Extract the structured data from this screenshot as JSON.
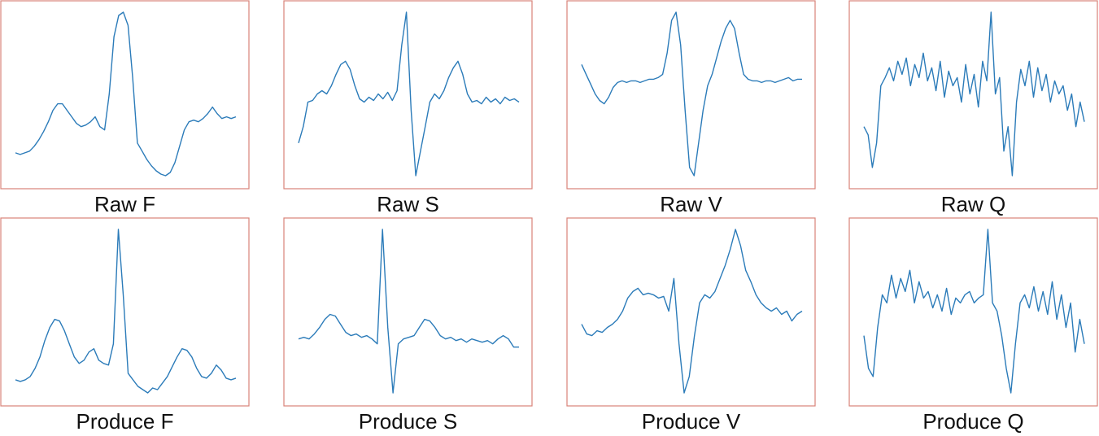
{
  "chart_data": [
    {
      "type": "line",
      "title": "Raw F",
      "color": "#2b7bb9",
      "values": [
        14,
        13,
        14,
        15,
        18,
        22,
        27,
        33,
        40,
        44,
        44,
        40,
        36,
        32,
        30,
        31,
        33,
        36,
        30,
        28,
        50,
        85,
        98,
        100,
        92,
        60,
        20,
        15,
        10,
        6,
        3,
        1,
        0,
        2,
        8,
        18,
        28,
        33,
        34,
        33,
        35,
        38,
        42,
        38,
        35,
        36,
        35,
        36
      ]
    },
    {
      "type": "line",
      "title": "Raw S",
      "color": "#2b7bb9",
      "values": [
        20,
        30,
        45,
        46,
        50,
        52,
        50,
        55,
        62,
        68,
        70,
        65,
        55,
        47,
        45,
        48,
        46,
        50,
        47,
        51,
        46,
        52,
        80,
        100,
        40,
        0,
        15,
        30,
        45,
        50,
        47,
        52,
        60,
        66,
        70,
        62,
        50,
        45,
        46,
        44,
        48,
        45,
        47,
        44,
        48,
        46,
        47,
        45
      ]
    },
    {
      "type": "line",
      "title": "Raw V",
      "color": "#2b7bb9",
      "values": [
        68,
        62,
        56,
        50,
        46,
        44,
        48,
        54,
        57,
        58,
        57,
        58,
        58,
        57,
        58,
        59,
        59,
        60,
        62,
        75,
        95,
        100,
        80,
        40,
        5,
        0,
        20,
        40,
        55,
        62,
        72,
        82,
        90,
        95,
        90,
        75,
        62,
        59,
        58,
        58,
        57,
        58,
        58,
        57,
        58,
        59,
        60,
        58,
        59,
        59
      ]
    },
    {
      "type": "line",
      "title": "Raw Q",
      "color": "#2b7bb9",
      "values": [
        30,
        25,
        5,
        20,
        55,
        60,
        66,
        58,
        70,
        62,
        72,
        55,
        68,
        60,
        75,
        58,
        66,
        52,
        70,
        48,
        64,
        55,
        60,
        45,
        68,
        50,
        62,
        42,
        70,
        58,
        100,
        50,
        60,
        15,
        30,
        0,
        45,
        65,
        55,
        70,
        48,
        66,
        52,
        62,
        45,
        58,
        50,
        55,
        40,
        50,
        30,
        45,
        33
      ]
    },
    {
      "type": "line",
      "title": "Produce F",
      "color": "#2b7bb9",
      "values": [
        8,
        7,
        8,
        10,
        15,
        22,
        32,
        40,
        45,
        44,
        38,
        30,
        22,
        18,
        20,
        25,
        27,
        20,
        18,
        17,
        30,
        100,
        60,
        12,
        8,
        4,
        2,
        0,
        3,
        2,
        6,
        10,
        16,
        22,
        27,
        26,
        22,
        15,
        10,
        9,
        12,
        17,
        14,
        9,
        8,
        9
      ]
    },
    {
      "type": "line",
      "title": "Produce S",
      "color": "#2b7bb9",
      "values": [
        33,
        34,
        33,
        36,
        40,
        45,
        48,
        47,
        42,
        37,
        35,
        36,
        34,
        35,
        33,
        30,
        100,
        40,
        0,
        30,
        33,
        34,
        35,
        40,
        45,
        44,
        40,
        35,
        33,
        34,
        32,
        33,
        31,
        33,
        32,
        31,
        32,
        30,
        33,
        35,
        33,
        28,
        28
      ]
    },
    {
      "type": "line",
      "title": "Produce V",
      "color": "#2b7bb9",
      "values": [
        42,
        36,
        35,
        38,
        37,
        40,
        42,
        45,
        50,
        58,
        62,
        64,
        60,
        61,
        60,
        58,
        59,
        50,
        70,
        30,
        0,
        10,
        35,
        55,
        60,
        58,
        62,
        70,
        78,
        88,
        100,
        90,
        75,
        68,
        60,
        55,
        52,
        50,
        52,
        48,
        50,
        44,
        48,
        50
      ]
    },
    {
      "type": "line",
      "title": "Produce Q",
      "color": "#2b7bb9",
      "values": [
        35,
        15,
        10,
        40,
        60,
        55,
        72,
        58,
        70,
        62,
        75,
        55,
        68,
        58,
        62,
        52,
        60,
        50,
        64,
        48,
        58,
        55,
        60,
        62,
        55,
        58,
        60,
        100,
        55,
        50,
        35,
        15,
        0,
        30,
        55,
        60,
        52,
        65,
        50,
        62,
        48,
        68,
        45,
        60,
        40,
        55,
        25,
        45,
        30
      ]
    }
  ]
}
